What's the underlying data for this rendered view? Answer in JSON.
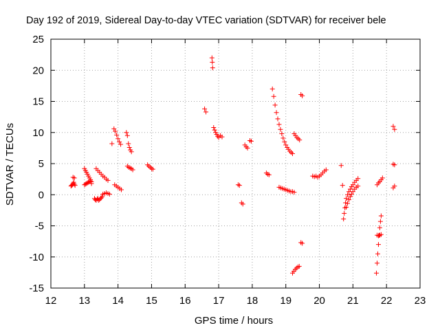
{
  "chart_data": {
    "type": "scatter",
    "title": "Day 192 of 2019, Sidereal Day-to-day VTEC variation (SDTVAR) for receiver bele",
    "xlabel": "GPS time / hours",
    "ylabel": "SDTVAR / TECUs",
    "xlim": [
      12,
      23
    ],
    "ylim": [
      -15,
      25
    ],
    "xticks": [
      "12",
      "13",
      "14",
      "15",
      "16",
      "17",
      "18",
      "19",
      "20",
      "21",
      "22",
      "23"
    ],
    "yticks": [
      "-15",
      "-10",
      "-5",
      "0",
      "5",
      "10",
      "15",
      "20",
      "25"
    ],
    "grid": true,
    "marker": "plus",
    "color": "#ff0000",
    "series": [
      {
        "name": "s1",
        "x": [
          12.6,
          12.62,
          12.64,
          12.66,
          12.68,
          12.7,
          12.72
        ],
        "y": [
          1.4,
          1.5,
          1.6,
          1.8,
          2.0,
          1.7,
          1.5
        ]
      },
      {
        "name": "s2",
        "x": [
          12.66,
          12.7
        ],
        "y": [
          2.8,
          2.7
        ]
      },
      {
        "name": "s3",
        "x": [
          13.0,
          13.03,
          13.06,
          13.09,
          13.12,
          13.15,
          13.18,
          13.21
        ],
        "y": [
          4.2,
          3.9,
          3.6,
          3.3,
          3.0,
          2.7,
          2.4,
          2.1
        ]
      },
      {
        "name": "s4",
        "x": [
          13.0,
          13.03,
          13.06,
          13.09,
          13.12,
          13.15,
          13.18,
          13.21
        ],
        "y": [
          1.6,
          1.7,
          1.8,
          1.9,
          2.0,
          2.1,
          2.2,
          1.8
        ]
      },
      {
        "name": "s5",
        "x": [
          13.3,
          13.32,
          13.35,
          13.38,
          13.4,
          13.42,
          13.45,
          13.48,
          13.5,
          13.53
        ],
        "y": [
          -0.6,
          -0.8,
          -0.9,
          -0.7,
          -0.6,
          -0.9,
          -0.8,
          -0.6,
          -0.5,
          -0.3
        ]
      },
      {
        "name": "s6",
        "x": [
          13.35,
          13.4,
          13.45,
          13.5,
          13.55,
          13.6,
          13.65,
          13.7
        ],
        "y": [
          4.2,
          3.9,
          3.6,
          3.3,
          3.0,
          2.8,
          2.5,
          2.3
        ]
      },
      {
        "name": "s7",
        "x": [
          13.55,
          13.6,
          13.65,
          13.7,
          13.75
        ],
        "y": [
          0.1,
          0.2,
          0.3,
          0.2,
          0.1
        ]
      },
      {
        "name": "s8",
        "x": [
          13.82
        ],
        "y": [
          8.2
        ]
      },
      {
        "name": "s9",
        "x": [
          13.88,
          13.92,
          13.96,
          14.0,
          14.04,
          14.08
        ],
        "y": [
          10.6,
          10.2,
          9.6,
          9.0,
          8.5,
          8.1
        ]
      },
      {
        "name": "s10",
        "x": [
          13.9,
          13.95,
          14.0,
          14.05,
          14.1
        ],
        "y": [
          1.6,
          1.4,
          1.2,
          1.0,
          0.8
        ]
      },
      {
        "name": "s11",
        "x": [
          14.25,
          14.28,
          14.31,
          14.34,
          14.37,
          14.4
        ],
        "y": [
          10.0,
          9.5,
          8.2,
          7.6,
          7.2,
          6.9
        ]
      },
      {
        "name": "s12",
        "x": [
          14.28,
          14.32,
          14.36,
          14.4,
          14.44
        ],
        "y": [
          4.6,
          4.4,
          4.3,
          4.2,
          4.0
        ]
      },
      {
        "name": "s13",
        "x": [
          14.88,
          14.92,
          14.96,
          15.0,
          15.04
        ],
        "y": [
          4.8,
          4.6,
          4.4,
          4.2,
          4.1
        ]
      },
      {
        "name": "s14",
        "x": [
          16.58,
          16.62
        ],
        "y": [
          13.8,
          13.3
        ]
      },
      {
        "name": "s15",
        "x": [
          16.8,
          16.81,
          16.82
        ],
        "y": [
          22.0,
          21.3,
          20.4
        ]
      },
      {
        "name": "s16",
        "x": [
          16.85,
          16.88,
          16.91,
          16.94,
          16.97,
          17.0,
          17.05,
          17.1
        ],
        "y": [
          10.8,
          10.4,
          10.0,
          9.7,
          9.4,
          9.2,
          9.5,
          9.3
        ]
      },
      {
        "name": "s17",
        "x": [
          17.58,
          17.62
        ],
        "y": [
          1.6,
          1.5
        ]
      },
      {
        "name": "s18",
        "x": [
          17.68,
          17.72
        ],
        "y": [
          -1.3,
          -1.5
        ]
      },
      {
        "name": "s19",
        "x": [
          17.78,
          17.82,
          17.86
        ],
        "y": [
          8.0,
          7.7,
          7.5
        ]
      },
      {
        "name": "s20",
        "x": [
          17.93,
          17.97
        ],
        "y": [
          8.7,
          8.6
        ]
      },
      {
        "name": "s21",
        "x": [
          18.42,
          18.46,
          18.5
        ],
        "y": [
          3.5,
          3.3,
          3.2
        ]
      },
      {
        "name": "s22",
        "x": [
          18.6,
          18.64,
          18.68,
          18.72,
          18.76,
          18.8,
          18.84,
          18.88,
          18.92,
          18.96,
          19.0,
          19.04,
          19.08,
          19.12,
          19.16,
          19.2
        ],
        "y": [
          17.0,
          15.8,
          14.4,
          13.2,
          12.2,
          11.3,
          10.5,
          9.8,
          9.1,
          8.5,
          8.0,
          7.6,
          7.3,
          7.0,
          6.8,
          6.6
        ]
      },
      {
        "name": "s23",
        "x": [
          18.8,
          18.85,
          18.9,
          18.95,
          19.0,
          19.05,
          19.1,
          19.15,
          19.2,
          19.25
        ],
        "y": [
          1.2,
          1.1,
          1.0,
          0.9,
          0.8,
          0.7,
          0.6,
          0.5,
          0.5,
          0.4
        ]
      },
      {
        "name": "s24",
        "x": [
          19.2,
          19.24,
          19.28,
          19.32,
          19.36,
          19.4
        ],
        "y": [
          -12.6,
          -12.3,
          -12.0,
          -11.8,
          -11.6,
          -11.5
        ]
      },
      {
        "name": "s25",
        "x": [
          19.25,
          19.29,
          19.33,
          19.37,
          19.41
        ],
        "y": [
          9.8,
          9.5,
          9.2,
          9.0,
          8.8
        ]
      },
      {
        "name": "s26",
        "x": [
          19.45,
          19.49
        ],
        "y": [
          16.1,
          15.9
        ]
      },
      {
        "name": "s27",
        "x": [
          19.45,
          19.49
        ],
        "y": [
          -7.7,
          -7.8
        ]
      },
      {
        "name": "s28",
        "x": [
          19.8,
          19.85,
          19.9,
          19.95,
          20.0,
          20.05,
          20.1,
          20.15,
          20.2
        ],
        "y": [
          3.0,
          2.9,
          3.0,
          2.8,
          3.0,
          3.2,
          3.5,
          3.8,
          4.0
        ]
      },
      {
        "name": "s29",
        "x": [
          20.65,
          20.69
        ],
        "y": [
          4.7,
          1.5
        ]
      },
      {
        "name": "s30",
        "x": [
          20.72,
          20.74,
          20.76,
          20.78,
          20.8,
          20.84,
          20.88,
          20.92,
          20.96,
          21.0,
          21.05,
          21.1,
          21.15
        ],
        "y": [
          -3.9,
          -3.0,
          -2.1,
          -1.3,
          -0.6,
          0.0,
          0.5,
          0.9,
          1.3,
          1.6,
          2.0,
          2.3,
          2.6
        ]
      },
      {
        "name": "s31",
        "x": [
          20.8,
          20.84,
          20.88,
          20.92,
          20.96,
          21.0,
          21.05,
          21.1,
          21.15
        ],
        "y": [
          -2.0,
          -1.4,
          -0.8,
          -0.3,
          0.1,
          0.5,
          0.9,
          1.2,
          1.4
        ]
      },
      {
        "name": "s32",
        "x": [
          21.7,
          21.72,
          21.74,
          21.76,
          21.78,
          21.8,
          21.82,
          21.84
        ],
        "y": [
          -12.6,
          -11.0,
          -9.5,
          -8.0,
          -6.5,
          -5.3,
          -4.3,
          -3.4
        ]
      },
      {
        "name": "s33",
        "x": [
          21.72,
          21.76,
          21.8,
          21.84
        ],
        "y": [
          -6.5,
          -6.6,
          -6.5,
          -6.4
        ]
      },
      {
        "name": "s34",
        "x": [
          21.72,
          21.76,
          21.8,
          21.84,
          21.88
        ],
        "y": [
          1.6,
          1.9,
          2.1,
          2.4,
          2.7
        ]
      },
      {
        "name": "s35",
        "x": [
          22.2,
          22.24
        ],
        "y": [
          11.0,
          10.5
        ]
      },
      {
        "name": "s36",
        "x": [
          22.2,
          22.24
        ],
        "y": [
          4.9,
          4.8
        ]
      },
      {
        "name": "s37",
        "x": [
          22.2,
          22.24
        ],
        "y": [
          1.1,
          1.4
        ]
      }
    ]
  }
}
